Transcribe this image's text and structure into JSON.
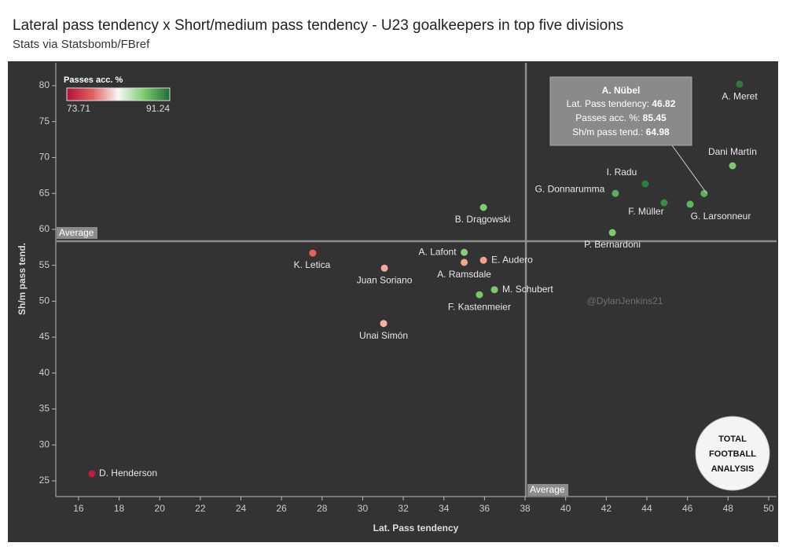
{
  "chart_data": {
    "type": "scatter",
    "title": "Lateral pass tendency x Short/medium pass tendency - U23 goalkeepers in top five divisions",
    "subtitle": "Stats via Statsbomb/FBref",
    "x_label": "Lat. Pass tendency",
    "y_label": "Sh/m pass tend.",
    "xlim": [
      14.88,
      50.39
    ],
    "ylim": [
      22.81,
      83.17
    ],
    "xticks": [
      16,
      18,
      20,
      22,
      24,
      26,
      28,
      30,
      32,
      34,
      36,
      38,
      40,
      42,
      44,
      46,
      48,
      50
    ],
    "yticks": [
      25,
      30,
      35,
      40,
      45,
      50,
      55,
      60,
      65,
      70,
      75,
      80
    ],
    "average_x": {
      "value": 38.04,
      "label": "Average"
    },
    "average_y": {
      "value": 58.35,
      "label": "Average"
    },
    "color_scale": {
      "title": "Passes acc. %",
      "min": 73.71,
      "max": 91.24,
      "colors": [
        "#b5103a",
        "#e2615f",
        "#f8f8f8",
        "#7ccc6c",
        "#1e6b33"
      ]
    },
    "points": [
      {
        "label": "A. Meret",
        "x": 48.57,
        "y": 80.2,
        "color": "#2d7a3a"
      },
      {
        "label": "Dani Martín",
        "x": 48.22,
        "y": 68.85,
        "color": "#7bcb6a"
      },
      {
        "label": "I. Radu",
        "x": 43.92,
        "y": 66.33,
        "color": "#2f7f3c"
      },
      {
        "label": "G. Donnarumma",
        "x": 42.45,
        "y": 65.0,
        "color": "#55b05a"
      },
      {
        "label": "F. Müller",
        "x": 44.85,
        "y": 63.7,
        "color": "#3a8a45"
      },
      {
        "label": "G. Larsonneur",
        "x": 46.13,
        "y": 63.5,
        "color": "#5cb85f"
      },
      {
        "label": null,
        "x": 46.82,
        "y": 64.98,
        "color": "#5ab35c"
      },
      {
        "label": "B. Drągowski",
        "x": 35.95,
        "y": 63.05,
        "color": "#7fcd6d"
      },
      {
        "label": "P. Bernardoni",
        "x": 42.3,
        "y": 59.55,
        "color": "#7ecb6b"
      },
      {
        "label": "A. Lafont",
        "x": 35.0,
        "y": 56.8,
        "color": "#86cf72"
      },
      {
        "label": "E. Audero",
        "x": 35.95,
        "y": 55.7,
        "color": "#f4a08a"
      },
      {
        "label": "A. Ramsdale",
        "x": 35.0,
        "y": 55.4,
        "color": "#f5a28e"
      },
      {
        "label": "K. Letica",
        "x": 27.54,
        "y": 56.7,
        "color": "#e8605a"
      },
      {
        "label": "Juan Soriano",
        "x": 31.07,
        "y": 54.6,
        "color": "#f6a898"
      },
      {
        "label": "M. Schubert",
        "x": 36.49,
        "y": 51.6,
        "color": "#7cc96a"
      },
      {
        "label": "F. Kastenmeier",
        "x": 35.75,
        "y": 50.9,
        "color": "#78c767"
      },
      {
        "label": "Unai Simón",
        "x": 31.03,
        "y": 46.9,
        "color": "#f7b0a4"
      },
      {
        "label": "D. Henderson",
        "x": 16.66,
        "y": 25.98,
        "color": "#c21a3b"
      }
    ],
    "tooltip": {
      "title": "A. Nübel",
      "rows": [
        {
          "label": "Lat. Pass tendency:",
          "value": 46.82
        },
        {
          "label": "Passes acc. %:",
          "value": 85.45
        },
        {
          "label": "Sh/m pass tend.:",
          "value": 64.98
        }
      ]
    },
    "watermark": "@DylanJenkins21",
    "logo_text": [
      "TOTAL",
      "FOOTBALL",
      "ANALYSIS"
    ]
  }
}
